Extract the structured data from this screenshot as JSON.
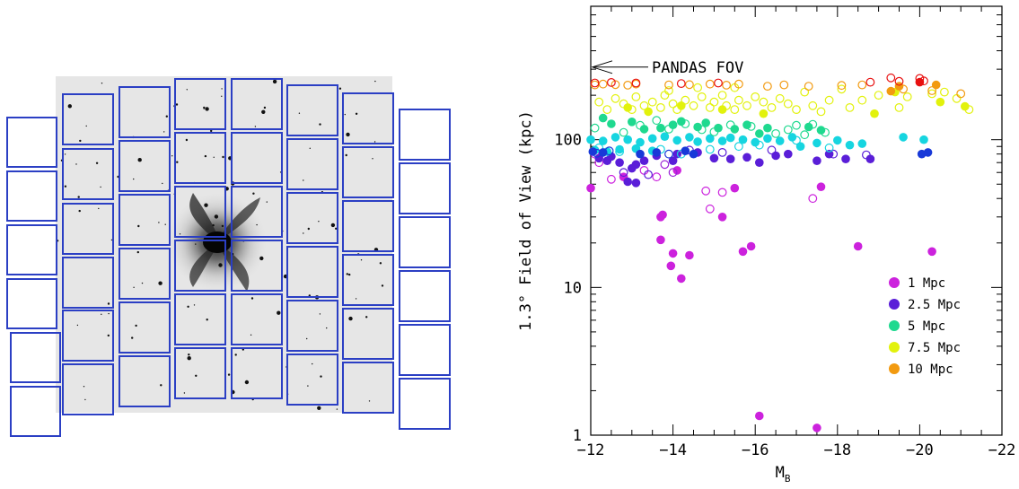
{
  "figure": {
    "left_panel": {
      "description_visible": false
    }
  },
  "colors": {
    "ccd_outline": "#2b3fc4",
    "galaxy_dark": "#111111",
    "field_bg": "#e6e6e6",
    "d1": "#cc22dd",
    "d25": "#5a1ed8",
    "d5": "#1fd98f",
    "d75": "#e2f20c",
    "d10": "#f29a10",
    "extra_cyan": "#16d5e0",
    "extra_blue": "#1839d8",
    "extra_red": "#e81010",
    "extra_purple": "#9b22d8"
  },
  "chart_data": {
    "type": "scatter",
    "title": "",
    "xlabel": "M",
    "xlabel_sub": "B",
    "ylabel": "1.3° Field of View (kpc)",
    "x_axis": {
      "range": [
        -12,
        -22
      ],
      "ticks": [
        -12,
        -14,
        -16,
        -18,
        -20,
        -22
      ],
      "tick_labels": [
        "−12",
        "−14",
        "−16",
        "−18",
        "−20",
        "−22"
      ]
    },
    "y_axis": {
      "scale": "log",
      "range": [
        1,
        800
      ],
      "ticks": [
        1,
        10,
        100
      ],
      "tick_labels": [
        "1",
        "10",
        "100"
      ]
    },
    "annotation": {
      "text": "PANDAS FOV",
      "y_value": 310,
      "arrow": "left"
    },
    "legend": {
      "placement": "bottom-right",
      "entries": [
        {
          "label": "1 Mpc",
          "color": "#cc22dd"
        },
        {
          "label": "2.5 Mpc",
          "color": "#5a1ed8"
        },
        {
          "label": "5 Mpc",
          "color": "#1fd98f"
        },
        {
          "label": "7.5 Mpc",
          "color": "#e2f20c"
        },
        {
          "label": "10 Mpc",
          "color": "#f29a10"
        }
      ]
    },
    "series": [
      {
        "color": "#cc22dd",
        "filled": [
          [
            -12.0,
            47
          ],
          [
            -13.7,
            30
          ],
          [
            -13.75,
            31
          ],
          [
            -13.7,
            21
          ],
          [
            -13.95,
            14
          ],
          [
            -14.0,
            17
          ],
          [
            -14.2,
            11.5
          ],
          [
            -14.4,
            16.5
          ],
          [
            -15.2,
            30
          ],
          [
            -15.7,
            17.5
          ],
          [
            -15.9,
            19
          ],
          [
            -15.5,
            47
          ],
          [
            -17.6,
            48
          ],
          [
            -18.5,
            19
          ],
          [
            -20.3,
            17.5
          ],
          [
            -16.1,
            1.35
          ],
          [
            -17.5,
            1.12
          ],
          [
            -14.1,
            62
          ],
          [
            -12.8,
            56
          ]
        ],
        "open": [
          [
            -12.2,
            70
          ],
          [
            -12.5,
            54
          ],
          [
            -13.3,
            62
          ],
          [
            -14.8,
            45
          ],
          [
            -14.9,
            34
          ],
          [
            -15.2,
            44
          ],
          [
            -17.4,
            40
          ],
          [
            -12.1,
            80
          ],
          [
            -13.6,
            56
          ]
        ]
      },
      {
        "color": "#5a1ed8",
        "filled": [
          [
            -12.2,
            75
          ],
          [
            -12.4,
            72
          ],
          [
            -12.5,
            77
          ],
          [
            -12.7,
            70
          ],
          [
            -13.0,
            64
          ],
          [
            -13.1,
            68
          ],
          [
            -13.3,
            72
          ],
          [
            -13.6,
            78
          ],
          [
            -14.0,
            72
          ],
          [
            -14.1,
            80
          ],
          [
            -14.6,
            82
          ],
          [
            -15.0,
            75
          ],
          [
            -15.4,
            74
          ],
          [
            -15.8,
            76
          ],
          [
            -16.1,
            70
          ],
          [
            -16.5,
            78
          ],
          [
            -16.8,
            80
          ],
          [
            -17.5,
            72
          ],
          [
            -17.8,
            80
          ],
          [
            -18.2,
            74
          ],
          [
            -18.8,
            74
          ],
          [
            -12.9,
            52
          ],
          [
            -13.1,
            51
          ]
        ],
        "open": [
          [
            -12.8,
            60
          ],
          [
            -13.4,
            58
          ],
          [
            -14.4,
            85
          ],
          [
            -15.2,
            82
          ],
          [
            -16.4,
            85
          ],
          [
            -17.9,
            80
          ],
          [
            -18.7,
            79
          ]
        ]
      },
      {
        "color": "#16d5e0",
        "filled": [
          [
            -12.0,
            100
          ],
          [
            -12.3,
            98
          ],
          [
            -12.6,
            104
          ],
          [
            -12.9,
            100
          ],
          [
            -13.2,
            96
          ],
          [
            -13.5,
            102
          ],
          [
            -13.8,
            105
          ],
          [
            -14.1,
            99
          ],
          [
            -14.4,
            104
          ],
          [
            -14.6,
            97
          ],
          [
            -14.9,
            102
          ],
          [
            -15.2,
            98
          ],
          [
            -15.4,
            103
          ],
          [
            -15.7,
            100
          ],
          [
            -16.0,
            96
          ],
          [
            -16.3,
            102
          ],
          [
            -16.6,
            98
          ],
          [
            -16.9,
            104
          ],
          [
            -17.1,
            90
          ],
          [
            -17.5,
            95
          ],
          [
            -18.0,
            99
          ],
          [
            -18.3,
            92
          ],
          [
            -18.6,
            94
          ],
          [
            -19.6,
            104
          ],
          [
            -20.1,
            100
          ],
          [
            -12.1,
            85
          ],
          [
            -12.4,
            83
          ],
          [
            -12.7,
            86
          ],
          [
            -13.1,
            87
          ],
          [
            -13.5,
            84
          ]
        ],
        "open": [
          [
            -12.2,
            88
          ],
          [
            -12.7,
            83
          ],
          [
            -13.7,
            86
          ],
          [
            -14.2,
            80
          ],
          [
            -14.9,
            86
          ],
          [
            -15.6,
            90
          ],
          [
            -16.1,
            92
          ],
          [
            -17.0,
            99
          ],
          [
            -17.8,
            88
          ]
        ]
      },
      {
        "color": "#1839d8",
        "filled": [
          [
            -12.05,
            83
          ],
          [
            -12.3,
            82
          ],
          [
            -13.2,
            80
          ],
          [
            -13.6,
            82
          ],
          [
            -14.3,
            84
          ],
          [
            -14.5,
            80
          ],
          [
            -20.05,
            80
          ],
          [
            -20.2,
            82
          ]
        ],
        "open": [
          [
            -12.15,
            81
          ],
          [
            -12.45,
            84
          ],
          [
            -13.9,
            80
          ]
        ]
      },
      {
        "color": "#1fd98f",
        "filled": [
          [
            -12.3,
            140
          ],
          [
            -12.5,
            128
          ],
          [
            -13.0,
            132
          ],
          [
            -13.3,
            118
          ],
          [
            -13.7,
            120
          ],
          [
            -14.0,
            126
          ],
          [
            -14.2,
            133
          ],
          [
            -14.6,
            122
          ],
          [
            -14.8,
            130
          ],
          [
            -15.1,
            120
          ],
          [
            -15.5,
            118
          ],
          [
            -15.8,
            126
          ],
          [
            -16.1,
            110
          ],
          [
            -16.3,
            120
          ],
          [
            -17.3,
            122
          ],
          [
            -17.6,
            116
          ]
        ],
        "open": [
          [
            -12.1,
            120
          ],
          [
            -12.8,
            112
          ],
          [
            -13.2,
            125
          ],
          [
            -13.6,
            135
          ],
          [
            -13.9,
            118
          ],
          [
            -14.3,
            128
          ],
          [
            -14.7,
            117
          ],
          [
            -15.0,
            113
          ],
          [
            -15.4,
            126
          ],
          [
            -15.9,
            123
          ],
          [
            -16.5,
            110
          ],
          [
            -16.8,
            117
          ],
          [
            -17.0,
            125
          ],
          [
            -17.2,
            108
          ],
          [
            -17.4,
            127
          ],
          [
            -17.7,
            112
          ]
        ]
      },
      {
        "color": "#e2f20c",
        "filled": [
          [
            -12.9,
            165
          ],
          [
            -13.4,
            155
          ],
          [
            -14.2,
            170
          ],
          [
            -15.2,
            160
          ],
          [
            -16.2,
            150
          ],
          [
            -18.9,
            150
          ],
          [
            -19.4,
            210
          ],
          [
            -20.5,
            180
          ],
          [
            -21.1,
            168
          ]
        ],
        "open": [
          [
            -12.2,
            180
          ],
          [
            -12.4,
            160
          ],
          [
            -12.6,
            190
          ],
          [
            -12.8,
            175
          ],
          [
            -13.0,
            160
          ],
          [
            -13.1,
            195
          ],
          [
            -13.3,
            170
          ],
          [
            -13.5,
            180
          ],
          [
            -13.7,
            165
          ],
          [
            -13.8,
            200
          ],
          [
            -14.0,
            175
          ],
          [
            -14.1,
            160
          ],
          [
            -14.3,
            185
          ],
          [
            -14.5,
            170
          ],
          [
            -14.7,
            195
          ],
          [
            -14.9,
            165
          ],
          [
            -15.0,
            180
          ],
          [
            -15.2,
            200
          ],
          [
            -15.3,
            170
          ],
          [
            -15.5,
            160
          ],
          [
            -15.6,
            185
          ],
          [
            -15.8,
            170
          ],
          [
            -16.0,
            195
          ],
          [
            -16.2,
            180
          ],
          [
            -16.4,
            165
          ],
          [
            -16.6,
            190
          ],
          [
            -16.8,
            175
          ],
          [
            -17.0,
            160
          ],
          [
            -17.2,
            210
          ],
          [
            -17.4,
            170
          ],
          [
            -17.6,
            155
          ],
          [
            -17.8,
            185
          ],
          [
            -18.1,
            220
          ],
          [
            -18.3,
            165
          ],
          [
            -18.6,
            185
          ],
          [
            -19.0,
            200
          ],
          [
            -19.5,
            165
          ],
          [
            -19.7,
            195
          ],
          [
            -20.3,
            205
          ],
          [
            -20.6,
            210
          ],
          [
            -20.9,
            190
          ],
          [
            -21.2,
            160
          ],
          [
            -13.9,
            215
          ],
          [
            -14.6,
            225
          ],
          [
            -15.5,
            225
          ]
        ],
        "open_extra": []
      },
      {
        "color": "#f29a10",
        "filled": [
          [
            -19.5,
            230
          ],
          [
            -20.4,
            235
          ],
          [
            -19.3,
            213
          ]
        ],
        "open": [
          [
            -12.1,
            235
          ],
          [
            -12.3,
            238
          ],
          [
            -12.6,
            236
          ],
          [
            -12.9,
            234
          ],
          [
            -13.1,
            238
          ],
          [
            -13.9,
            235
          ],
          [
            -14.4,
            236
          ],
          [
            -14.9,
            238
          ],
          [
            -15.3,
            234
          ],
          [
            -15.6,
            238
          ],
          [
            -16.3,
            230
          ],
          [
            -16.7,
            235
          ],
          [
            -18.6,
            235
          ],
          [
            -19.6,
            220
          ],
          [
            -20.3,
            215
          ],
          [
            -21.0,
            205
          ],
          [
            -17.3,
            230
          ],
          [
            -18.1,
            233
          ]
        ]
      },
      {
        "color": "#e81010",
        "filled": [
          [
            -20.0,
            245
          ]
        ],
        "open": [
          [
            -12.1,
            242
          ],
          [
            -12.5,
            244
          ],
          [
            -13.1,
            242
          ],
          [
            -14.2,
            240
          ],
          [
            -15.1,
            242
          ],
          [
            -18.8,
            245
          ],
          [
            -19.3,
            262
          ],
          [
            -19.5,
            248
          ],
          [
            -20.0,
            260
          ],
          [
            -20.1,
            250
          ]
        ]
      },
      {
        "color": "#9b22d8",
        "filled": [],
        "open": [
          [
            -13.8,
            68
          ],
          [
            -14.0,
            60
          ]
        ]
      }
    ]
  }
}
